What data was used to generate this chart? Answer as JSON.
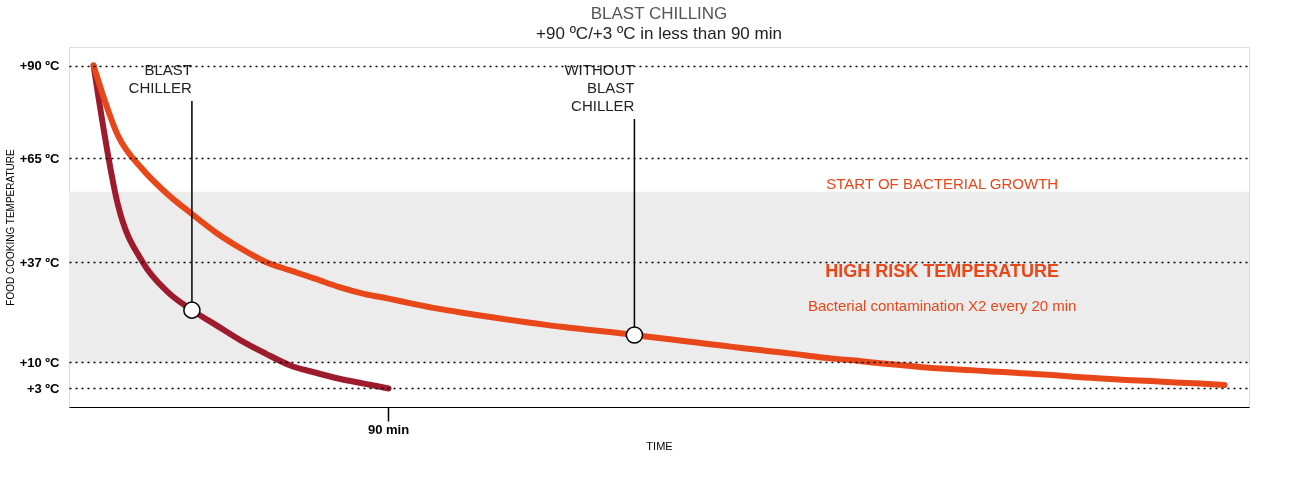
{
  "chart_data": {
    "type": "line",
    "title": "BLAST CHILLING",
    "subtitle": "+90 ºC/+3 ºC in less than 90 min",
    "xlabel": "TIME",
    "ylabel": "FOOD COOKING TEMPERATURE",
    "categories": [
      null,
      null,
      null,
      null,
      null,
      null,
      null,
      null,
      null,
      null,
      null,
      null,
      "90 min",
      null,
      null,
      null,
      null,
      null,
      null,
      null,
      null,
      null,
      null,
      null,
      null,
      null,
      null,
      null,
      null,
      null,
      null,
      null,
      null,
      null,
      null,
      null,
      null,
      null,
      null,
      null,
      null,
      null,
      null,
      null,
      null,
      null,
      null
    ],
    "ylim": [
      -2,
      95
    ],
    "yticks": [
      {
        "value": 3,
        "label": "+3 ºC"
      },
      {
        "value": 10,
        "label": "+10 ºC"
      },
      {
        "value": 37,
        "label": "+37 ºC"
      },
      {
        "value": 65,
        "label": "+65 ºC"
      },
      {
        "value": 90,
        "label": "+90 ºC"
      }
    ],
    "grid": "y",
    "legend": false,
    "marker": "none",
    "line_style": "solid",
    "series": [
      {
        "color": "#9e1b2e",
        "values": [
          90,
          52.2,
          37.0,
          29.1,
          24.1,
          20.0,
          15.9,
          12.4,
          9.2,
          7.3,
          5.6,
          4.3,
          3,
          null,
          null,
          null,
          null,
          null,
          null,
          null,
          null,
          null,
          null,
          null,
          null,
          null,
          null,
          null,
          null,
          null,
          null,
          null,
          null,
          null,
          null,
          null,
          null,
          null,
          null,
          null,
          null,
          null,
          null,
          null,
          null,
          null,
          null
        ]
      },
      {
        "color": "#e8471a",
        "values": [
          90,
          71.0,
          62.0,
          55.4,
          50.0,
          44.9,
          40.7,
          37.1,
          34.8,
          32.6,
          30.3,
          28.5,
          27.2,
          25.8,
          24.5,
          23.4,
          22.4,
          21.4,
          20.5,
          19.6,
          18.9,
          18.2,
          17.4,
          16.6,
          15.8,
          15.0,
          14.2,
          13.4,
          12.7,
          11.9,
          11.1,
          10.5,
          9.8,
          9.2,
          8.6,
          8.2,
          7.8,
          7.4,
          7.0,
          6.6,
          6.1,
          5.7,
          5.3,
          5.0,
          4.6,
          4.3,
          3.9
        ]
      }
    ],
    "bands": [
      {
        "axis": "y",
        "from": 10,
        "to": 56,
        "label": "HIGH RISK TEMPERATURE",
        "color": "#ececec"
      }
    ],
    "annotations": [
      "BLAST CHILLER",
      "WITHOUT BLAST CHILLER",
      "START OF BACTERIAL GROWTH",
      "Bacterial contamination X2 every 20 min"
    ]
  }
}
